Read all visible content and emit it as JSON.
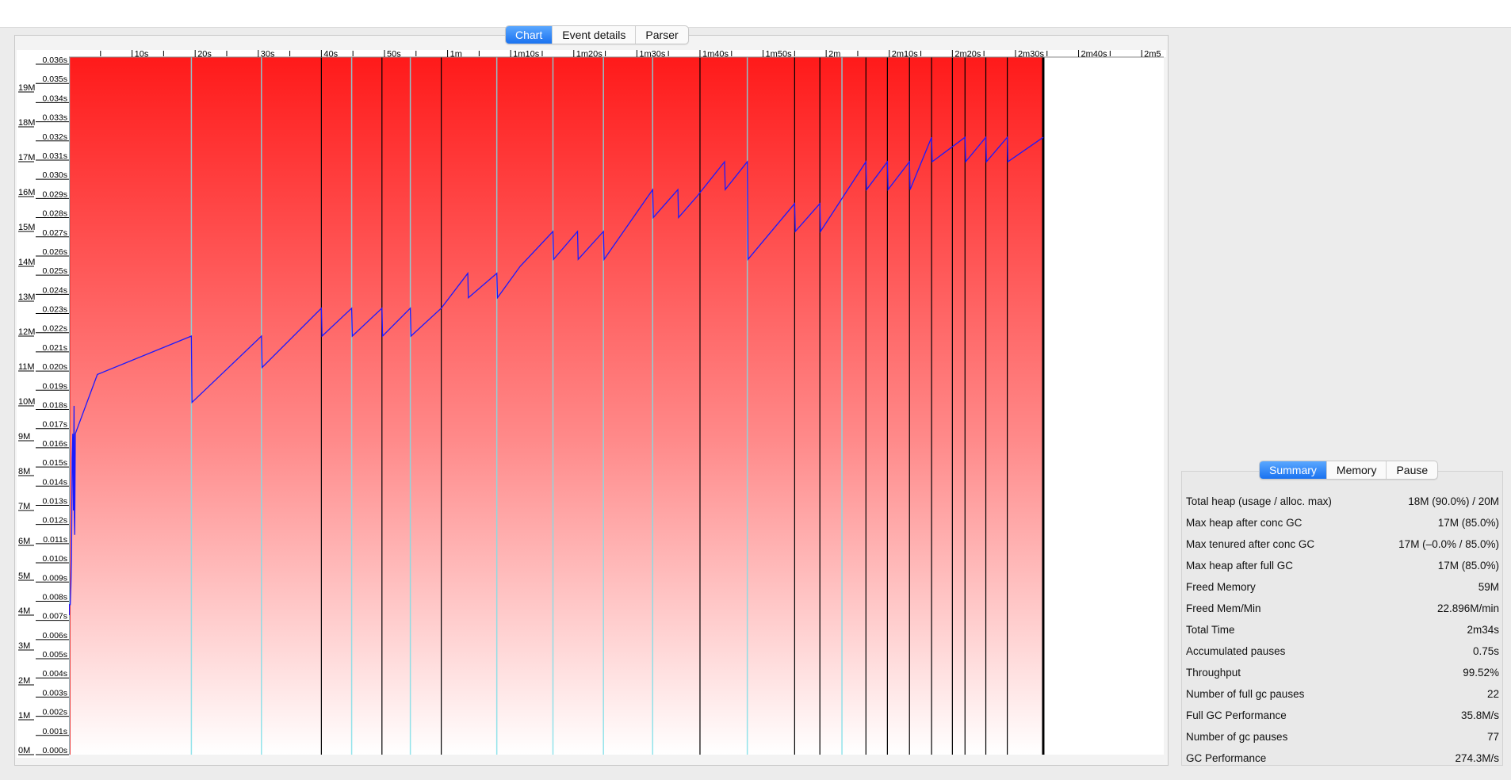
{
  "tabs_main": [
    {
      "label": "Chart",
      "active": true
    },
    {
      "label": "Event details",
      "active": false
    },
    {
      "label": "Parser",
      "active": false
    }
  ],
  "tabs_summary": [
    {
      "label": "Summary",
      "active": true
    },
    {
      "label": "Memory",
      "active": false
    },
    {
      "label": "Pause",
      "active": false
    }
  ],
  "summary": [
    {
      "label": "Total heap (usage / alloc. max)",
      "value": "18M (90.0%) / 20M"
    },
    {
      "label": "Max heap after conc GC",
      "value": "17M (85.0%)"
    },
    {
      "label": "Max tenured after conc GC",
      "value": "17M (–0.0% / 85.0%)"
    },
    {
      "label": "Max heap after full GC",
      "value": "17M (85.0%)"
    },
    {
      "label": "Freed Memory",
      "value": "59M"
    },
    {
      "label": "Freed Mem/Min",
      "value": "22.896M/min"
    },
    {
      "label": "Total Time",
      "value": "2m34s"
    },
    {
      "label": "Accumulated pauses",
      "value": "0.75s"
    },
    {
      "label": "Throughput",
      "value": "99.52%"
    },
    {
      "label": "Number of full gc pauses",
      "value": "22"
    },
    {
      "label": "Full GC Performance",
      "value": "35.8M/s"
    },
    {
      "label": "Number of gc pauses",
      "value": "77"
    },
    {
      "label": "GC Performance",
      "value": "274.3M/s"
    }
  ],
  "chart_data": {
    "type": "line",
    "x_unit": "seconds",
    "x_tick_labels": [
      "10s",
      "20s",
      "30s",
      "40s",
      "50s",
      "1m",
      "1m10s",
      "1m20s",
      "1m30s",
      "1m40s",
      "1m50s",
      "2m",
      "2m10s",
      "2m20s",
      "2m30s",
      "2m40s",
      "2m5"
    ],
    "x_tick_values": [
      10,
      20,
      30,
      40,
      50,
      60,
      70,
      80,
      90,
      100,
      110,
      120,
      130,
      140,
      150,
      160,
      170
    ],
    "x_range": [
      0,
      173.5
    ],
    "heap_ticks": [
      "0M",
      "1M",
      "2M",
      "3M",
      "4M",
      "5M",
      "6M",
      "7M",
      "8M",
      "9M",
      "10M",
      "11M",
      "12M",
      "13M",
      "14M",
      "15M",
      "16M",
      "17M",
      "18M",
      "19M"
    ],
    "heap_range_mb": [
      0,
      20
    ],
    "pause_ticks": [
      "0.000s",
      "0.001s",
      "0.002s",
      "0.003s",
      "0.004s",
      "0.005s",
      "0.006s",
      "0.007s",
      "0.008s",
      "0.009s",
      "0.010s",
      "0.011s",
      "0.012s",
      "0.013s",
      "0.014s",
      "0.015s",
      "0.016s",
      "0.017s",
      "0.018s",
      "0.019s",
      "0.020s",
      "0.021s",
      "0.022s",
      "0.023s",
      "0.024s",
      "0.025s",
      "0.026s",
      "0.027s",
      "0.028s",
      "0.029s",
      "0.030s",
      "0.031s",
      "0.032s",
      "0.033s",
      "0.034s",
      "0.035s",
      "0.036s"
    ],
    "total_heap_mb": 20,
    "total_heap_end_s": 154.4,
    "used_heap_series": {
      "x": [
        0.05,
        0.06,
        0.2,
        0.3,
        0.4,
        0.5,
        0.6,
        0.7,
        0.8,
        0.85,
        0.9,
        1.0,
        4.5,
        19.4,
        19.5,
        30.5,
        30.6,
        40.0,
        40.1,
        44.8,
        44.9,
        49.6,
        49.7,
        54.1,
        54.2,
        59.0,
        63.2,
        63.3,
        67.8,
        67.9,
        71.5,
        76.7,
        76.8,
        80.6,
        80.7,
        84.7,
        84.8,
        92.5,
        92.6,
        96.5,
        96.6,
        99.5,
        103.9,
        104.0,
        107.5,
        107.6,
        115.0,
        115.1,
        119.0,
        119.1,
        126.3,
        126.4,
        129.7,
        129.8,
        133.2,
        133.3,
        136.7,
        136.8,
        142.0,
        142.1,
        145.3,
        145.4,
        148.7,
        148.8,
        154.4
      ],
      "y": [
        4.0,
        4.3,
        4.3,
        4.8,
        5.6,
        8.5,
        9.2,
        7.0,
        10.0,
        6.8,
        6.3,
        9.2,
        10.9,
        12.0,
        10.1,
        12.0,
        11.1,
        12.8,
        12.0,
        12.8,
        12.0,
        12.8,
        12.0,
        12.8,
        12.0,
        12.8,
        13.8,
        13.1,
        13.8,
        13.1,
        14.0,
        15.0,
        14.2,
        15.0,
        14.2,
        15.0,
        14.2,
        16.2,
        15.4,
        16.2,
        15.4,
        16.0,
        17.0,
        16.2,
        17.0,
        14.2,
        15.8,
        15.0,
        15.8,
        15.0,
        17.0,
        16.2,
        17.0,
        16.2,
        17.0,
        16.2,
        17.7,
        17.0,
        17.7,
        17.0,
        17.7,
        17.0,
        17.7,
        17.0,
        17.7
      ]
    },
    "full_gc_times_s": [
      40.0,
      49.6,
      59.0,
      100.0,
      115.0,
      119.0,
      126.3,
      129.7,
      133.2,
      136.7,
      140.0,
      142.0,
      145.3,
      148.7,
      154.4
    ],
    "concurrent_gc_times_s": [
      0.05,
      19.4,
      30.5,
      44.8,
      54.1,
      67.8,
      76.7,
      84.7,
      92.5,
      107.5,
      122.5
    ]
  }
}
